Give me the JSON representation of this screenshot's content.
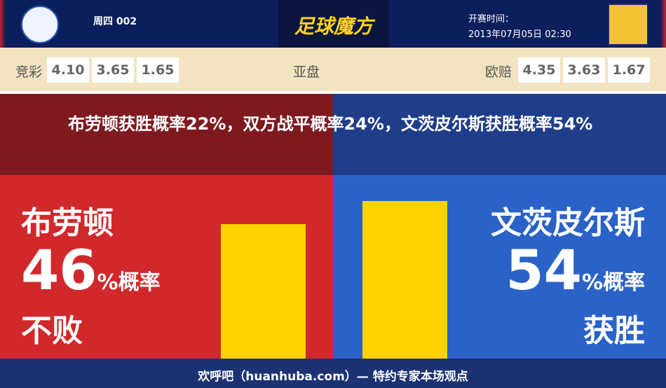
{
  "header": {
    "match_no": "周四 002",
    "brand": "足球魔方",
    "kickoff_label": "开赛时间：",
    "kickoff_time": "2013年07月05日 02:30"
  },
  "odds": {
    "jingcai_label": "竞彩",
    "jingcai": [
      "4.10",
      "3.65",
      "1.65"
    ],
    "asian_label": "亚盘",
    "europe_label": "欧赔",
    "europe": [
      "4.35",
      "3.63",
      "1.67"
    ]
  },
  "summary": "布劳顿获胜概率22%，双方战平概率24%，文茨皮尔斯获胜概率54%",
  "left": {
    "team": "布劳顿",
    "value": 46,
    "unit": "%概率",
    "outcome": "不败"
  },
  "right": {
    "team": "文茨皮尔斯",
    "value": 54,
    "unit": "%概率",
    "outcome": "获胜"
  },
  "footer": "欢呼吧（huanhuba.com）— 特约专家本场观点"
}
